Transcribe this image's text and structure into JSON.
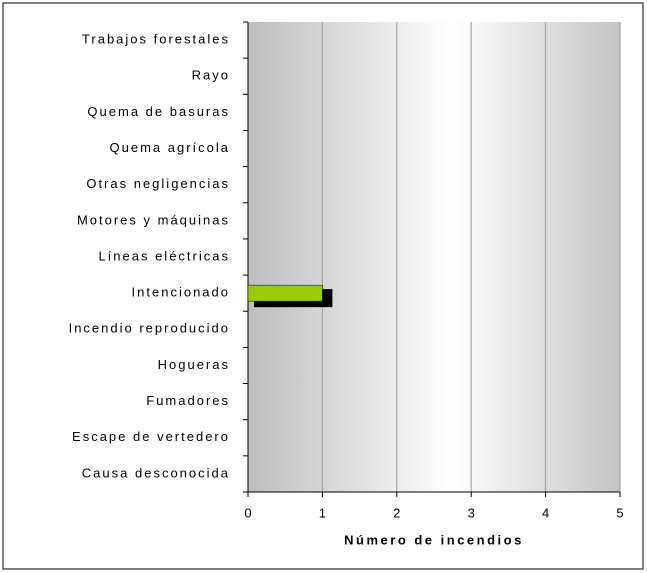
{
  "chart_data": {
    "type": "barh",
    "categories": [
      "Trabajos forestales",
      "Rayo",
      "Quema de basuras",
      "Quema agrícola",
      "Otras negligencias",
      "Motores y máquinas",
      "Líneas eléctricas",
      "Intencionado",
      "Incendio reproducido",
      "Hogueras",
      "Fumadores",
      "Escape de vertedero",
      "Causa desconocida"
    ],
    "values": [
      0,
      0,
      0,
      0,
      0,
      0,
      0,
      1,
      0,
      0,
      0,
      0,
      0
    ],
    "color": "#99cc00",
    "xlabel": "Número de incendios",
    "xlim": [
      0,
      5
    ],
    "xticks": [
      0,
      1,
      2,
      3,
      4,
      5
    ],
    "grid": true
  }
}
